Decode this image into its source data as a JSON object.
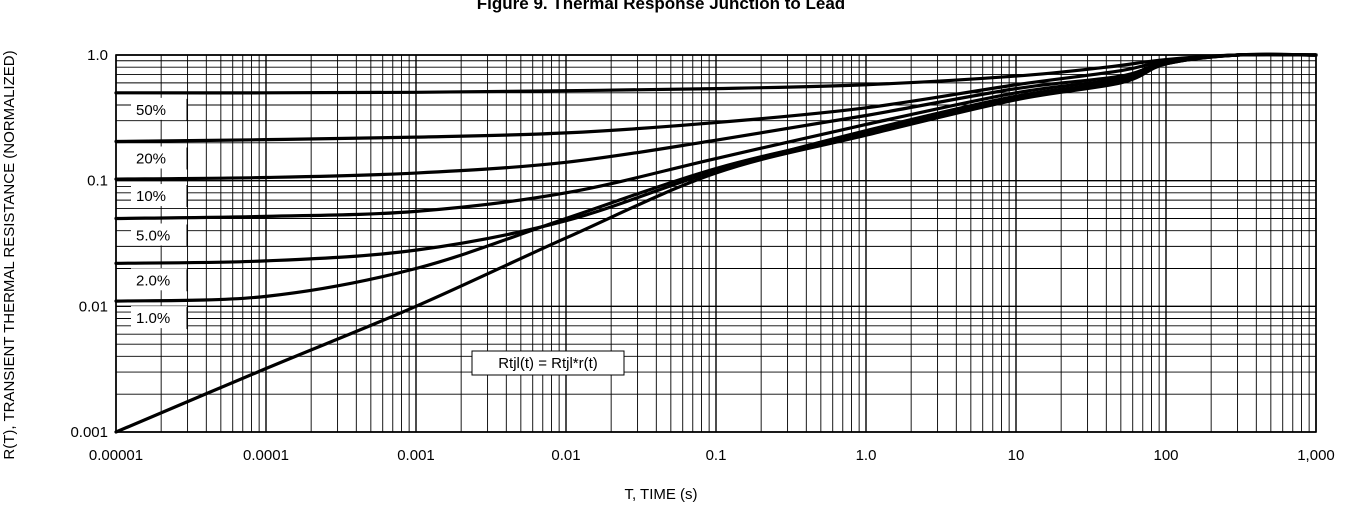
{
  "chart_data": {
    "type": "line",
    "title": "Figure 9. Thermal Response Junction to Lead",
    "xlabel": "T, TIME (s)",
    "ylabel": "R(T), TRANSIENT THERMAL RESISTANCE (NORMALIZED)",
    "xscale": "log",
    "yscale": "log",
    "xlim": [
      1e-05,
      1000
    ],
    "ylim": [
      0.001,
      1.0
    ],
    "grid": true,
    "x_ticks": [
      "0.00001",
      "0.0001",
      "0.001",
      "0.01",
      "0.1",
      "1.0",
      "10",
      "100",
      "1,000"
    ],
    "y_ticks": [
      "0.001",
      "0.01",
      "0.1",
      "1.0"
    ],
    "annotation": "Rtjl(t) = Rtjl*r(t)",
    "series": [
      {
        "label": "50%",
        "points": [
          [
            1e-05,
            0.5
          ],
          [
            0.0001,
            0.5
          ],
          [
            0.001,
            0.505
          ],
          [
            0.01,
            0.52
          ],
          [
            0.1,
            0.54
          ],
          [
            1,
            0.58
          ],
          [
            10,
            0.68
          ],
          [
            40,
            0.8
          ],
          [
            100,
            0.92
          ],
          [
            300,
            1.0
          ],
          [
            1000,
            1.0
          ]
        ]
      },
      {
        "label": "20%",
        "points": [
          [
            1e-05,
            0.205
          ],
          [
            0.0001,
            0.212
          ],
          [
            0.001,
            0.222
          ],
          [
            0.01,
            0.24
          ],
          [
            0.1,
            0.29
          ],
          [
            1,
            0.38
          ],
          [
            10,
            0.58
          ],
          [
            50,
            0.75
          ],
          [
            100,
            0.9
          ],
          [
            300,
            1.0
          ],
          [
            1000,
            1.0
          ]
        ]
      },
      {
        "label": "10%",
        "points": [
          [
            1e-05,
            0.103
          ],
          [
            0.0001,
            0.106
          ],
          [
            0.001,
            0.115
          ],
          [
            0.01,
            0.14
          ],
          [
            0.1,
            0.21
          ],
          [
            1,
            0.33
          ],
          [
            10,
            0.54
          ],
          [
            50,
            0.68
          ],
          [
            100,
            0.88
          ],
          [
            300,
            1.0
          ],
          [
            1000,
            1.0
          ]
        ]
      },
      {
        "label": "5.0%",
        "points": [
          [
            1e-05,
            0.05
          ],
          [
            0.0001,
            0.052
          ],
          [
            0.001,
            0.057
          ],
          [
            0.01,
            0.08
          ],
          [
            0.1,
            0.15
          ],
          [
            1,
            0.28
          ],
          [
            10,
            0.5
          ],
          [
            50,
            0.65
          ],
          [
            100,
            0.87
          ],
          [
            300,
            1.0
          ],
          [
            1000,
            1.0
          ]
        ]
      },
      {
        "label": "2.0%",
        "points": [
          [
            1e-05,
            0.022
          ],
          [
            0.0001,
            0.023
          ],
          [
            0.001,
            0.028
          ],
          [
            0.01,
            0.048
          ],
          [
            0.1,
            0.12
          ],
          [
            1,
            0.25
          ],
          [
            10,
            0.47
          ],
          [
            50,
            0.62
          ],
          [
            100,
            0.86
          ],
          [
            300,
            1.0
          ],
          [
            1000,
            1.0
          ]
        ]
      },
      {
        "label": "1.0%",
        "points": [
          [
            1e-05,
            0.011
          ],
          [
            0.0001,
            0.012
          ],
          [
            0.001,
            0.02
          ],
          [
            0.01,
            0.05
          ],
          [
            0.1,
            0.125
          ],
          [
            1,
            0.24
          ],
          [
            10,
            0.46
          ],
          [
            50,
            0.61
          ],
          [
            100,
            0.85
          ],
          [
            300,
            1.0
          ],
          [
            1000,
            1.0
          ]
        ]
      },
      {
        "label": "",
        "points": [
          [
            1e-05,
            0.001
          ],
          [
            0.0001,
            0.0032
          ],
          [
            0.001,
            0.01
          ],
          [
            0.01,
            0.035
          ],
          [
            0.1,
            0.115
          ],
          [
            1,
            0.23
          ],
          [
            10,
            0.44
          ],
          [
            50,
            0.6
          ],
          [
            100,
            0.85
          ],
          [
            300,
            1.0
          ],
          [
            1000,
            1.0
          ]
        ]
      }
    ]
  }
}
